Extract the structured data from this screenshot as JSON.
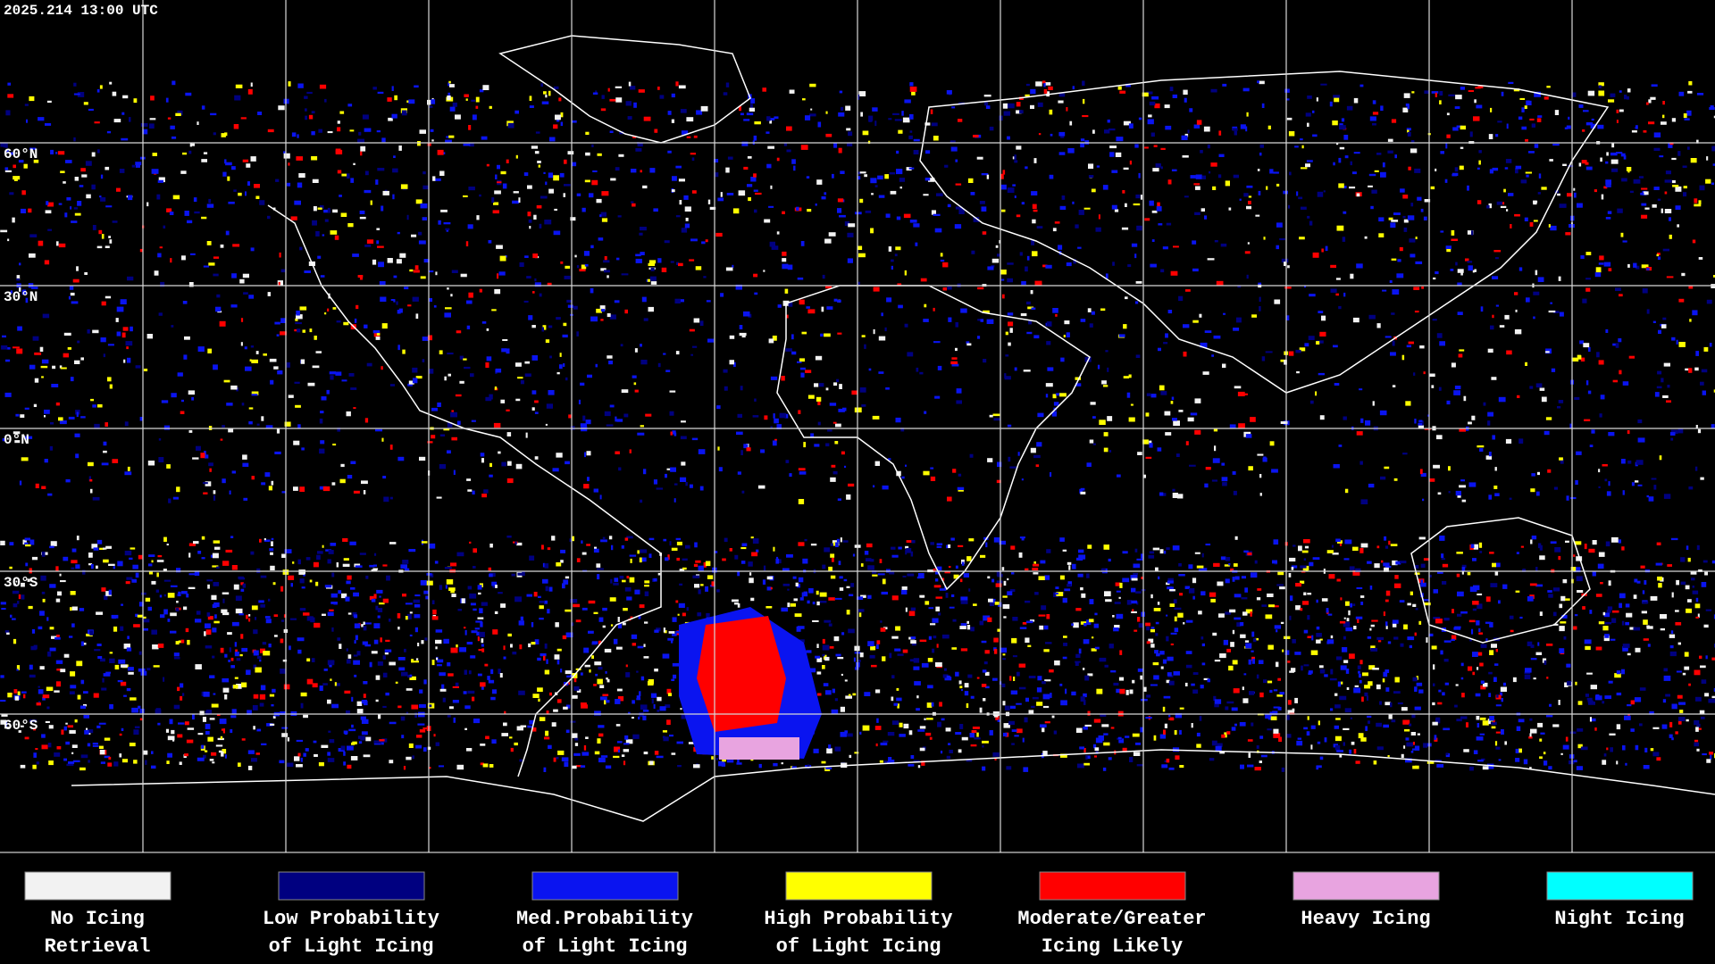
{
  "header": {
    "timestamp": "2025.214 13:00 UTC"
  },
  "map": {
    "latitude_labels": [
      "60°N",
      "30°N",
      "0°N",
      "30°S",
      "60°S"
    ]
  },
  "legend": [
    {
      "lines": [
        "No Icing",
        "Retrieval"
      ],
      "color": "#f2f2f2"
    },
    {
      "lines": [
        "Low Probability",
        "of Light Icing"
      ],
      "color": "#000080"
    },
    {
      "lines": [
        "Med.Probability",
        "of Light Icing"
      ],
      "color": "#0a14f0"
    },
    {
      "lines": [
        "High Probability",
        "of Light Icing"
      ],
      "color": "#ffff00"
    },
    {
      "lines": [
        "Moderate/Greater",
        "Icing Likely"
      ],
      "color": "#ff0000"
    },
    {
      "lines": [
        "Heavy Icing"
      ],
      "color": "#e8a4e0"
    },
    {
      "lines": [
        "Night Icing"
      ],
      "color": "#00ffff"
    }
  ]
}
